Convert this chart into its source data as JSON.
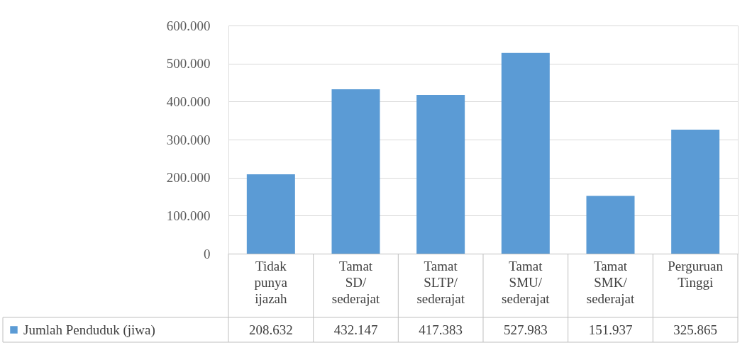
{
  "chart_data": {
    "type": "bar",
    "categories": [
      "Tidak punya ijazah",
      "Tamat SD/ sederajat",
      "Tamat SLTP/ sederajat",
      "Tamat SMU/ sederajat",
      "Tamat SMK/ sederajat",
      "Perguruan Tinggi"
    ],
    "series": [
      {
        "name": "Jumlah Penduduk (jiwa)",
        "color": "#5b9bd5",
        "values": [
          208632,
          432147,
          417383,
          527983,
          151937,
          325865
        ],
        "value_labels": [
          "208.632",
          "432.147",
          "417.383",
          "527.983",
          "151.937",
          "325.865"
        ]
      }
    ],
    "ylim": [
      0,
      600000
    ],
    "yticks": [
      {
        "value": 0,
        "label": "0"
      },
      {
        "value": 100000,
        "label": "100.000"
      },
      {
        "value": 200000,
        "label": "200.000"
      },
      {
        "value": 300000,
        "label": "300.000"
      },
      {
        "value": 400000,
        "label": "400.000"
      },
      {
        "value": 500000,
        "label": "500.000"
      },
      {
        "value": 600000,
        "label": "600.000"
      }
    ],
    "grid": "y",
    "legend": "bottom left"
  }
}
